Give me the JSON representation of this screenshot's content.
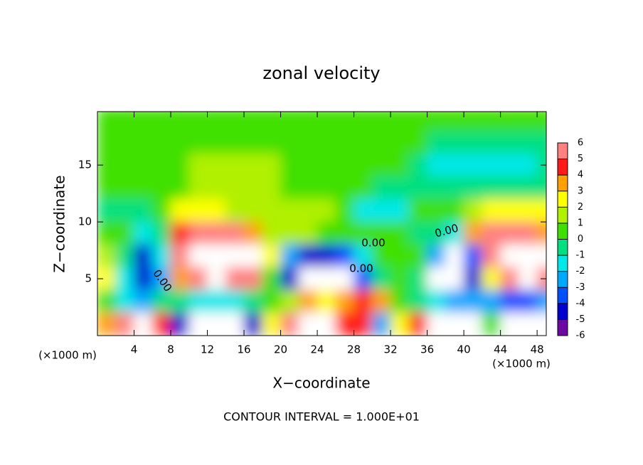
{
  "chart_data": {
    "type": "heatmap",
    "title": "zonal velocity",
    "x_label": "X−coordinate",
    "y_label": "Z−coordinate",
    "x_unit_left": "(×1000 m)",
    "x_unit_right": "(×1000 m)",
    "annotation": "CONTOUR INTERVAL = 1.000E+01",
    "contour_labels": [
      "0.00",
      "0.00",
      "0.00",
      "0.00"
    ],
    "xlim": [
      0,
      49
    ],
    "ylim": [
      0,
      19.7
    ],
    "xticks": [
      4,
      8,
      12,
      16,
      20,
      24,
      28,
      32,
      36,
      40,
      44,
      48
    ],
    "yticks": [
      5,
      10,
      15
    ],
    "x": [
      1,
      3,
      5,
      7,
      9,
      11,
      13,
      15,
      17,
      19,
      21,
      23,
      25,
      27,
      29,
      31,
      33,
      35,
      37,
      39,
      41,
      43,
      45,
      47,
      49
    ],
    "y": [
      19,
      17,
      15,
      13,
      11,
      9,
      7,
      5,
      3,
      1
    ],
    "z": [
      [
        0.5,
        0.5,
        0.5,
        0.5,
        0.5,
        0.5,
        0.5,
        0.5,
        0.5,
        0.5,
        0.5,
        0.5,
        0.5,
        0.5,
        0.5,
        0.5,
        0.5,
        0.5,
        0,
        0,
        0,
        0,
        0,
        0,
        0
      ],
      [
        0.5,
        0.5,
        0.5,
        0.5,
        0.5,
        0.5,
        0.5,
        0.5,
        0.5,
        0.5,
        0.5,
        0.5,
        0.5,
        0.5,
        0.5,
        0.5,
        0,
        0,
        -0.5,
        -0.5,
        -1,
        -1,
        -1,
        -1,
        -0.5
      ],
      [
        0,
        0,
        0,
        0,
        0.5,
        1,
        1,
        1,
        1,
        1,
        0.5,
        0.5,
        0.5,
        0.5,
        0.5,
        0.5,
        0,
        -0.5,
        -1.5,
        -1.5,
        -1.5,
        -1.5,
        -1.5,
        -1.5,
        -1
      ],
      [
        0,
        0,
        0,
        0,
        0.5,
        1,
        1,
        1,
        1,
        1,
        0.8,
        0.8,
        0.8,
        0.8,
        0,
        -0.5,
        -0.5,
        -0.5,
        -1,
        -1,
        -1,
        -1,
        -1,
        -1,
        -1
      ],
      [
        -0.5,
        -0.5,
        -0.5,
        0.5,
        2,
        2,
        2,
        1.5,
        1,
        1,
        1.5,
        1.5,
        1.5,
        0.5,
        -1.5,
        -1.5,
        -1.5,
        0,
        0,
        0,
        1,
        2,
        2,
        2,
        2
      ],
      [
        0,
        0,
        -2,
        -1,
        4,
        5,
        6,
        5,
        3,
        1,
        1.5,
        1,
        0.5,
        0,
        0.5,
        0,
        0,
        -0.5,
        -1,
        -2,
        3,
        5,
        6,
        5,
        3
      ],
      [
        1,
        -1,
        -5,
        -2,
        5,
        8,
        9,
        9,
        7,
        2,
        -3,
        -5,
        -5,
        -4,
        -2,
        0,
        0,
        0,
        -3,
        -8,
        -4,
        6,
        9,
        9,
        7
      ],
      [
        2,
        -2,
        -5,
        -3,
        3,
        6,
        7,
        6,
        5,
        0,
        -5,
        -8,
        -9,
        -8,
        -4,
        -1,
        0,
        -1,
        -7,
        -9,
        -5,
        2,
        6,
        7,
        6
      ],
      [
        0,
        -2,
        -3,
        -1,
        -1,
        -2,
        -2,
        -2,
        -1,
        0,
        1,
        3,
        2,
        3,
        4,
        3,
        0,
        -1,
        -2,
        -3,
        -3,
        -3,
        -4,
        -4,
        -3
      ],
      [
        3,
        5,
        8,
        4,
        -5,
        -8,
        -9,
        -8,
        -5,
        2,
        6,
        8,
        7,
        4,
        4,
        -3,
        2,
        4,
        7,
        9,
        7,
        0,
        -7,
        -9,
        -7
      ]
    ],
    "colorbar_ticks": [
      -6,
      -5,
      -4,
      -3,
      -2,
      -1,
      0,
      1,
      2,
      3,
      4,
      5,
      6
    ],
    "colors": [
      "#6a0aa0",
      "#0000d0",
      "#0050ff",
      "#00a8ff",
      "#00e8e8",
      "#00e080",
      "#40e000",
      "#b0f000",
      "#ffff00",
      "#ffa000",
      "#ff1a1a",
      "#ff8080"
    ],
    "out_of_range_color": "#ffffff"
  }
}
